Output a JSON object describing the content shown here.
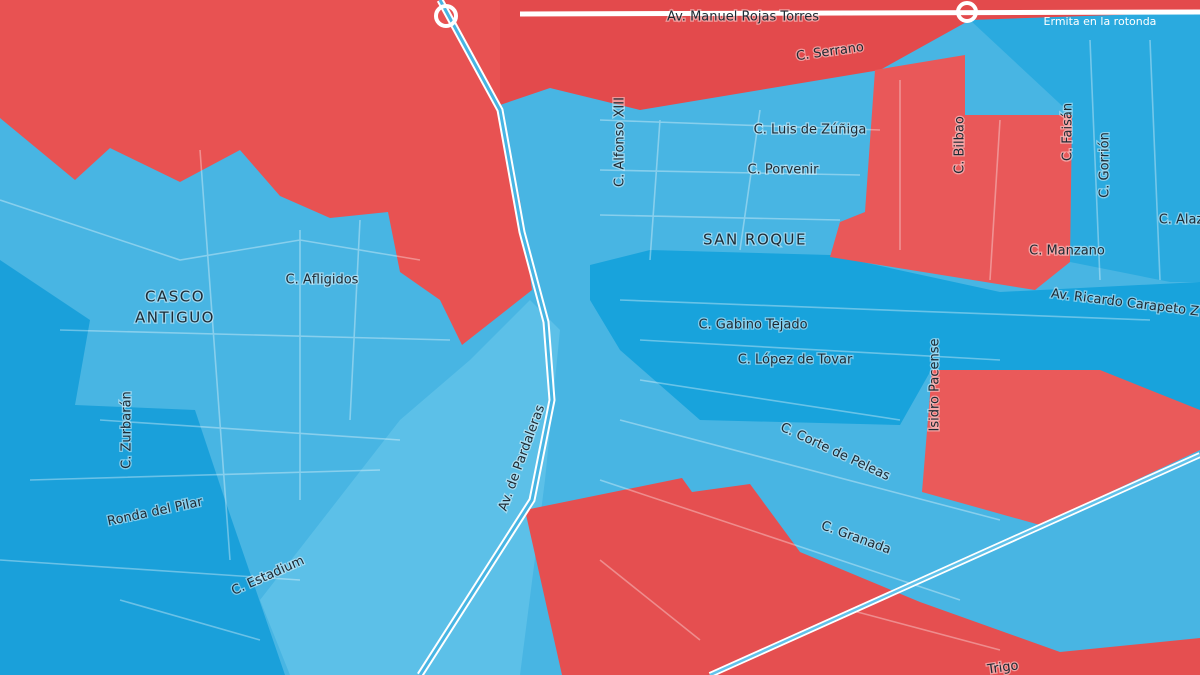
{
  "map": {
    "neighborhoods": [
      [
        "CASCO",
        "ANTIGUO"
      ],
      [
        "SAN ROQUE"
      ]
    ],
    "streets": [
      "Av. Manuel Rojas Torres",
      "C. Serrano",
      "C. Luis de Zúñiga",
      "C. Alfonso XIII",
      "C. Porvenir",
      "C. Bilbao",
      "C. Faisán",
      "C. Gorrión",
      "C. Alaza",
      "C. Manzano",
      "Av. Ricardo Carapeto Z",
      "C. Afligidos",
      "C. Gabino Tejado",
      "C. López de Tovar",
      "Isidro Pacense",
      "C. Corte de Peleas",
      "C. Zurbarán",
      "Av. de Pardaleras",
      "Ronda del Pilar",
      "C. Granada",
      "C. Estadium",
      "Trigo"
    ],
    "landmarks": [
      "Ermita en la rotonda"
    ]
  }
}
